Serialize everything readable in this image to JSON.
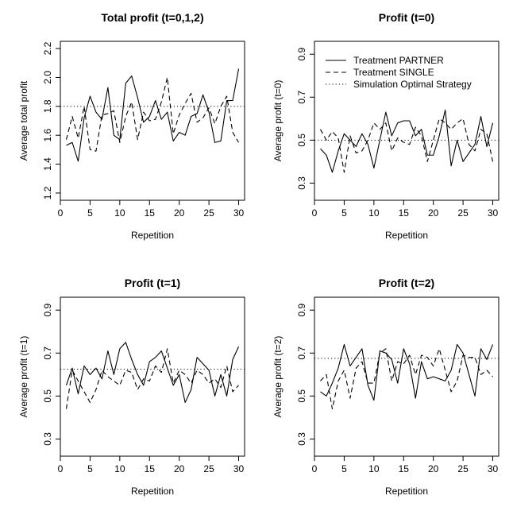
{
  "chart_data": [
    {
      "type": "line",
      "title": "Total profit (t=0,1,2)",
      "xlabel": "Repetition",
      "ylabel": "Average total profit",
      "xlim": [
        0,
        31
      ],
      "ylim": [
        1.15,
        2.25
      ],
      "xticks": [
        0,
        5,
        10,
        15,
        20,
        25,
        30
      ],
      "yticks": [
        1.2,
        1.4,
        1.6,
        1.8,
        2.0,
        2.2
      ],
      "reference": 1.8,
      "series": [
        {
          "name": "Treatment PARTNER",
          "style": "solid",
          "values": [
            1.53,
            1.55,
            1.42,
            1.72,
            1.87,
            1.76,
            1.71,
            1.93,
            1.6,
            1.57,
            1.96,
            2.01,
            1.86,
            1.69,
            1.73,
            1.84,
            1.71,
            1.76,
            1.56,
            1.62,
            1.6,
            1.73,
            1.75,
            1.88,
            1.76,
            1.55,
            1.56,
            1.84,
            1.84,
            2.06
          ]
        },
        {
          "name": "Treatment SINGLE",
          "style": "dashed",
          "values": [
            1.57,
            1.73,
            1.58,
            1.8,
            1.5,
            1.49,
            1.74,
            1.75,
            1.77,
            1.55,
            1.73,
            1.83,
            1.57,
            1.76,
            1.7,
            1.71,
            1.83,
            2.0,
            1.61,
            1.74,
            1.82,
            1.89,
            1.69,
            1.72,
            1.79,
            1.68,
            1.8,
            1.87,
            1.62,
            1.55
          ]
        }
      ]
    },
    {
      "type": "line",
      "title": "Profit (t=0)",
      "xlabel": "Repetition",
      "ylabel": "Average profit (t=0)",
      "xlim": [
        0,
        31
      ],
      "ylim": [
        0.22,
        0.96
      ],
      "xticks": [
        0,
        5,
        10,
        15,
        20,
        25,
        30
      ],
      "yticks": [
        0.3,
        0.5,
        0.7,
        0.9
      ],
      "reference": 0.5,
      "legend": {
        "position": "top-right",
        "entries": [
          {
            "label": "Treatment PARTNER",
            "style": "solid"
          },
          {
            "label": "Treatment SINGLE",
            "style": "dashed"
          },
          {
            "label": "Simulation Optimal Strategy",
            "style": "dotted"
          }
        ]
      },
      "series": [
        {
          "name": "Treatment PARTNER",
          "style": "solid",
          "values": [
            0.46,
            0.43,
            0.35,
            0.45,
            0.53,
            0.5,
            0.47,
            0.53,
            0.48,
            0.37,
            0.5,
            0.63,
            0.52,
            0.58,
            0.59,
            0.59,
            0.52,
            0.55,
            0.43,
            0.43,
            0.52,
            0.64,
            0.38,
            0.5,
            0.4,
            0.44,
            0.48,
            0.61,
            0.47,
            0.58
          ]
        },
        {
          "name": "Treatment SINGLE",
          "style": "dashed",
          "values": [
            0.55,
            0.5,
            0.54,
            0.51,
            0.35,
            0.52,
            0.44,
            0.45,
            0.5,
            0.58,
            0.55,
            0.58,
            0.45,
            0.51,
            0.49,
            0.48,
            0.56,
            0.52,
            0.4,
            0.5,
            0.6,
            0.58,
            0.55,
            0.58,
            0.6,
            0.48,
            0.45,
            0.55,
            0.53,
            0.4
          ]
        }
      ]
    },
    {
      "type": "line",
      "title": "Profit (t=1)",
      "xlabel": "Repetition",
      "ylabel": "Average profit (t=1)",
      "xlim": [
        0,
        31
      ],
      "ylim": [
        0.22,
        0.96
      ],
      "xticks": [
        0,
        5,
        10,
        15,
        20,
        25,
        30
      ],
      "yticks": [
        0.3,
        0.5,
        0.7,
        0.9
      ],
      "reference": 0.625,
      "series": [
        {
          "name": "Treatment PARTNER",
          "style": "solid",
          "values": [
            0.55,
            0.63,
            0.51,
            0.64,
            0.6,
            0.63,
            0.58,
            0.71,
            0.6,
            0.72,
            0.75,
            0.67,
            0.6,
            0.55,
            0.66,
            0.68,
            0.71,
            0.63,
            0.55,
            0.6,
            0.47,
            0.53,
            0.68,
            0.65,
            0.62,
            0.5,
            0.6,
            0.5,
            0.67,
            0.73
          ]
        },
        {
          "name": "Treatment SINGLE",
          "style": "dashed",
          "values": [
            0.44,
            0.62,
            0.57,
            0.52,
            0.47,
            0.53,
            0.62,
            0.59,
            0.57,
            0.55,
            0.62,
            0.61,
            0.53,
            0.58,
            0.57,
            0.64,
            0.61,
            0.72,
            0.56,
            0.62,
            0.6,
            0.56,
            0.62,
            0.6,
            0.56,
            0.58,
            0.54,
            0.64,
            0.52,
            0.55
          ]
        }
      ]
    },
    {
      "type": "line",
      "title": "Profit (t=2)",
      "xlabel": "Repetition",
      "ylabel": "Average profit (t=2)",
      "xlim": [
        0,
        31
      ],
      "ylim": [
        0.22,
        0.96
      ],
      "xticks": [
        0,
        5,
        10,
        15,
        20,
        25,
        30
      ],
      "yticks": [
        0.3,
        0.5,
        0.7,
        0.9
      ],
      "reference": 0.675,
      "series": [
        {
          "name": "Treatment PARTNER",
          "style": "solid",
          "values": [
            0.52,
            0.5,
            0.56,
            0.63,
            0.74,
            0.64,
            0.68,
            0.72,
            0.55,
            0.48,
            0.71,
            0.7,
            0.67,
            0.56,
            0.72,
            0.65,
            0.49,
            0.66,
            0.58,
            0.59,
            0.58,
            0.57,
            0.62,
            0.74,
            0.7,
            0.6,
            0.5,
            0.72,
            0.67,
            0.74
          ]
        },
        {
          "name": "Treatment SINGLE",
          "style": "dashed",
          "values": [
            0.57,
            0.6,
            0.44,
            0.57,
            0.62,
            0.49,
            0.63,
            0.66,
            0.56,
            0.56,
            0.7,
            0.72,
            0.57,
            0.66,
            0.65,
            0.69,
            0.6,
            0.69,
            0.68,
            0.64,
            0.72,
            0.62,
            0.52,
            0.57,
            0.69,
            0.68,
            0.68,
            0.6,
            0.62,
            0.59
          ]
        }
      ]
    }
  ]
}
